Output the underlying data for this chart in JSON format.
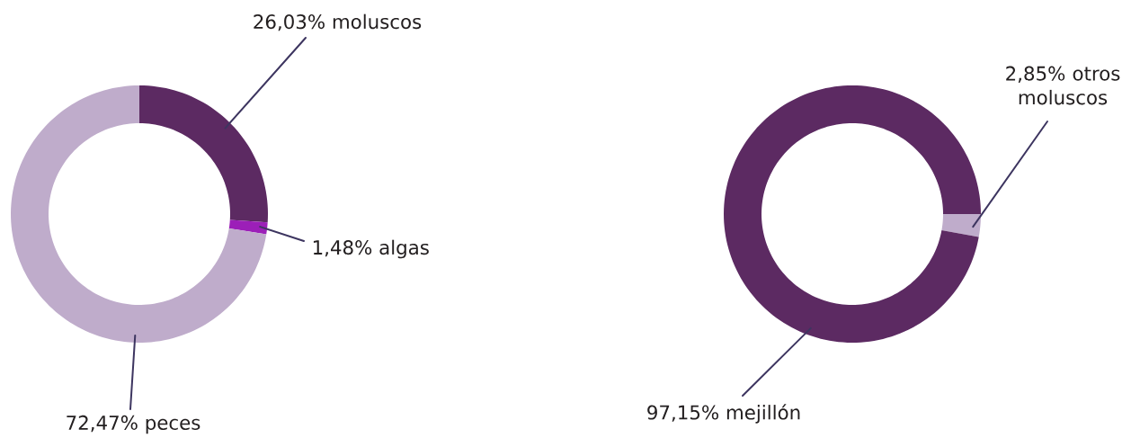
{
  "chart_data": [
    {
      "type": "donut",
      "categories": [
        "moluscos",
        "algas",
        "peces"
      ],
      "values": [
        26.03,
        1.48,
        72.47
      ],
      "colors": [
        "#5c2a62",
        "#9c1fb8",
        "#bfaccb"
      ],
      "value_labels": [
        "26,03%",
        "1,48%",
        "72,47%"
      ]
    },
    {
      "type": "donut",
      "categories": [
        "otros moluscos",
        "mejillón"
      ],
      "values": [
        2.85,
        97.15
      ],
      "colors": [
        "#bfaccb",
        "#5c2a62"
      ],
      "value_labels": [
        "2,85%",
        "97,15%"
      ]
    }
  ]
}
